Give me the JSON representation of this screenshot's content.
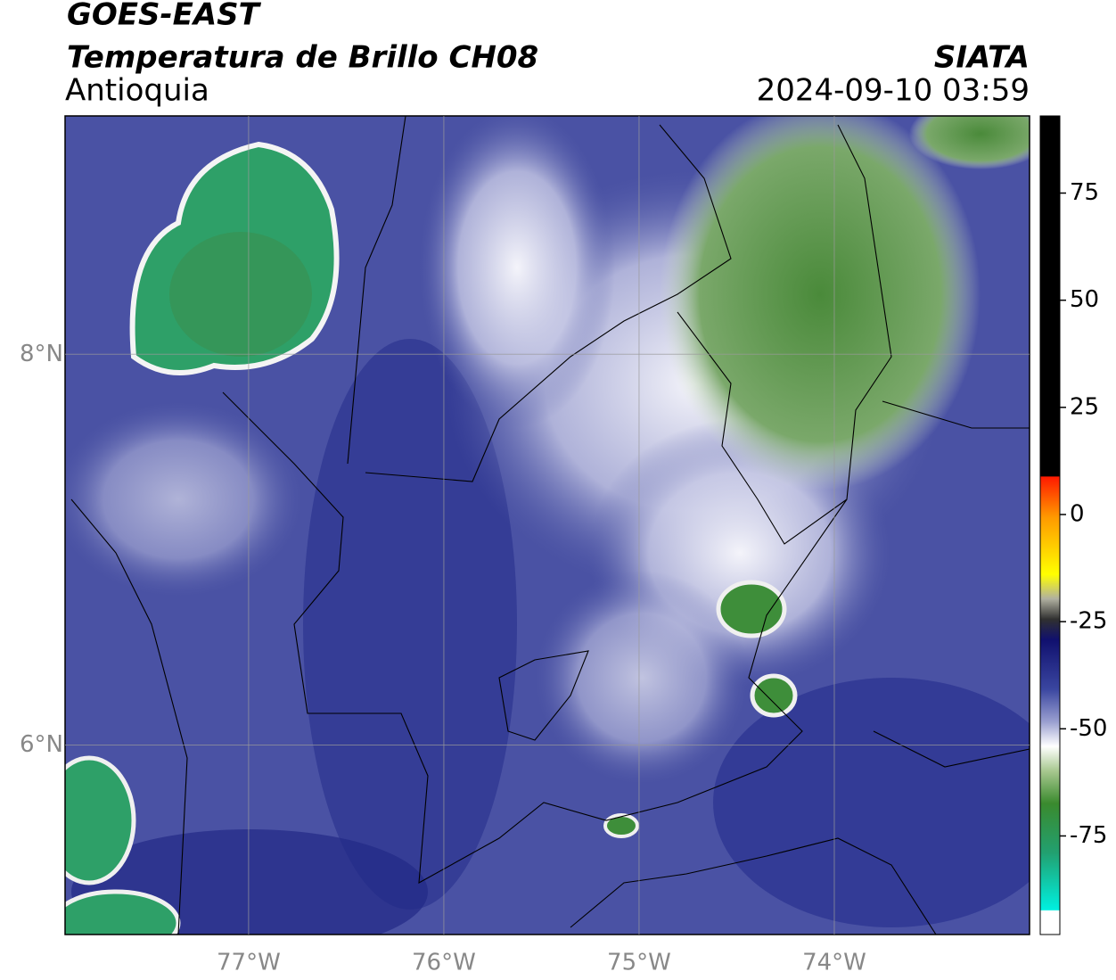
{
  "header": {
    "title": "GOES-EAST",
    "subtitle": "Temperatura de Brillo CH08",
    "region": "Antioquia",
    "source": "SIATA",
    "datetime": "2024-09-10 03:59"
  },
  "map": {
    "xlim": [
      -77.94,
      -73.0
    ],
    "ylim": [
      5.03,
      9.22
    ],
    "xticks": [
      {
        "value": -77,
        "label": "77°W"
      },
      {
        "value": -76,
        "label": "76°W"
      },
      {
        "value": -75,
        "label": "75°W"
      },
      {
        "value": -74,
        "label": "74°W"
      }
    ],
    "yticks": [
      {
        "value": 8,
        "label": "8°N"
      },
      {
        "value": 6,
        "label": "6°N"
      }
    ],
    "grid": true
  },
  "colorbar": {
    "lim": [
      -98,
      93
    ],
    "ticks": [
      75,
      50,
      25,
      0,
      -25,
      -50,
      -75
    ]
  }
}
